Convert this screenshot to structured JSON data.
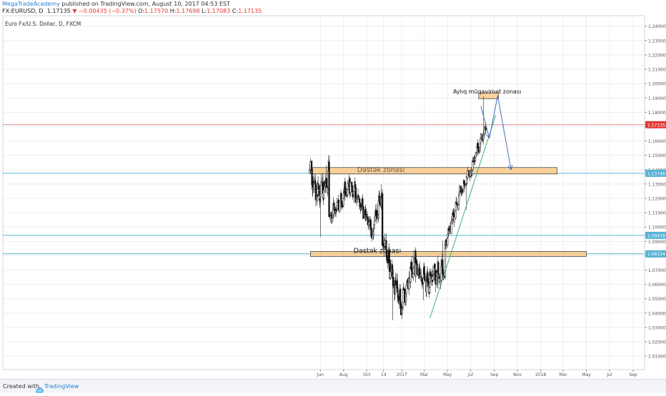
{
  "header": {
    "author": "MegaTradeAcademy",
    "published": " published on TradingView.com, August 10, 2017 04:53 EST",
    "symbol": "FX:EURUSD, D",
    "last": "1.17135",
    "arrow": "▼",
    "change": "−0.00435 (−0.37%)",
    "o_label": "O:",
    "o": "1.17570",
    "h_label": "H:",
    "h": "1.17698",
    "l_label": "L:",
    "l": "1.17083",
    "c_label": "C:",
    "c": "1.17135"
  },
  "colors": {
    "up_candle": "#111111",
    "down_candle": "#111111",
    "zone_fill": "#f9c98a",
    "zone_stroke": "#333333",
    "trend_line": "#3cb371",
    "projection_line": "#4a6bbf",
    "level_line": "#56b3d6",
    "price_line": "#e88a8a",
    "last_price_bg": "#e53935",
    "level_label_bg": "#56b3d6"
  },
  "footer": {
    "created": "Created with",
    "brand": "TradingView",
    "logo_icon": "tradingview-cloud-icon"
  },
  "chart_data": {
    "type": "candlestick",
    "title": "Euro Fx/U.S. Dollar, D, FXCM",
    "xlabel": "",
    "ylabel": "",
    "x_ticks": [
      "Jun",
      "Aug",
      "Oct",
      "14",
      "2017",
      "Mar",
      "May",
      "Jul",
      "Sep",
      "Nov",
      "2018",
      "Mar",
      "May",
      "Jul",
      "Sep"
    ],
    "y_ticks": [
      "1.24000",
      "1.23000",
      "1.22000",
      "1.21000",
      "1.20000",
      "1.19000",
      "1.18000",
      "1.17000",
      "1.16000",
      "1.15000",
      "1.14000",
      "1.13000",
      "1.12000",
      "1.11000",
      "1.10000",
      "1.09000",
      "1.08000",
      "1.07000",
      "1.06000",
      "1.05000",
      "1.04000",
      "1.03000",
      "1.02000",
      "1.01000"
    ],
    "ylim": [
      1.0,
      1.245
    ],
    "grid": true,
    "price_labels": [
      {
        "value": 1.17135,
        "label": "1.17135",
        "kind": "last"
      },
      {
        "value": 1.13746,
        "label": "1.13746",
        "kind": "level"
      },
      {
        "value": 1.09418,
        "label": "1.09418",
        "kind": "level"
      },
      {
        "value": 1.08134,
        "label": "1.08134",
        "kind": "level"
      }
    ],
    "zones": [
      {
        "label": "Aylıq müqavimət zonası",
        "low": 1.1895,
        "high": 1.1935,
        "start": "2017-07-22",
        "end": "2017-09-12"
      },
      {
        "label": "Dəstək zonası",
        "low": 1.137,
        "high": 1.1415,
        "start": "2016-05-06",
        "end": "2018-02-13"
      },
      {
        "label": "Dəstək zonası",
        "low": 1.0795,
        "high": 1.083,
        "start": "2016-05-06",
        "end": "2018-05-01"
      }
    ],
    "trend_line": [
      {
        "date": "2017-03-16",
        "price": 1.0365
      },
      {
        "date": "2017-09-05",
        "price": 1.178
      }
    ],
    "projection": [
      {
        "date": "2017-07-28",
        "price": 1.1842
      },
      {
        "date": "2017-08-19",
        "price": 1.162
      },
      {
        "date": "2017-09-10",
        "price": 1.1915
      },
      {
        "date": "2017-10-15",
        "price": 1.14
      }
    ],
    "candle_segments": [
      {
        "start": "2016-05-04",
        "end": "2016-06-23",
        "from": 1.14,
        "to": 1.138,
        "amp": 0.01,
        "hi": 1.143,
        "lo": 1.093,
        "via": 1.11
      },
      {
        "start": "2016-06-24",
        "end": "2016-08-20",
        "from": 1.105,
        "to": 1.13,
        "amp": 0.008
      },
      {
        "start": "2016-08-21",
        "end": "2016-10-15",
        "from": 1.13,
        "to": 1.098,
        "amp": 0.007
      },
      {
        "start": "2016-10-16",
        "end": "2016-11-10",
        "from": 1.098,
        "to": 1.125,
        "amp": 0.008,
        "hi": 1.1298
      },
      {
        "start": "2016-11-11",
        "end": "2016-12-31",
        "from": 1.09,
        "to": 1.045,
        "amp": 0.01,
        "lo": 1.035
      },
      {
        "start": "2017-01-01",
        "end": "2017-02-05",
        "from": 1.045,
        "to": 1.078,
        "amp": 0.008
      },
      {
        "start": "2017-02-06",
        "end": "2017-03-15",
        "from": 1.07,
        "to": 1.06,
        "amp": 0.008,
        "lo": 1.049
      },
      {
        "start": "2017-03-16",
        "end": "2017-04-24",
        "from": 1.065,
        "to": 1.07,
        "amp": 0.01,
        "hi": 1.0905,
        "lo": 1.057
      },
      {
        "start": "2017-04-25",
        "end": "2017-06-05",
        "from": 1.087,
        "to": 1.125,
        "amp": 0.006
      },
      {
        "start": "2017-06-06",
        "end": "2017-06-30",
        "from": 1.125,
        "to": 1.14,
        "amp": 0.005,
        "lo": 1.112
      },
      {
        "start": "2017-07-01",
        "end": "2017-08-10",
        "from": 1.14,
        "to": 1.1713,
        "amp": 0.006,
        "hi": 1.191
      }
    ]
  }
}
